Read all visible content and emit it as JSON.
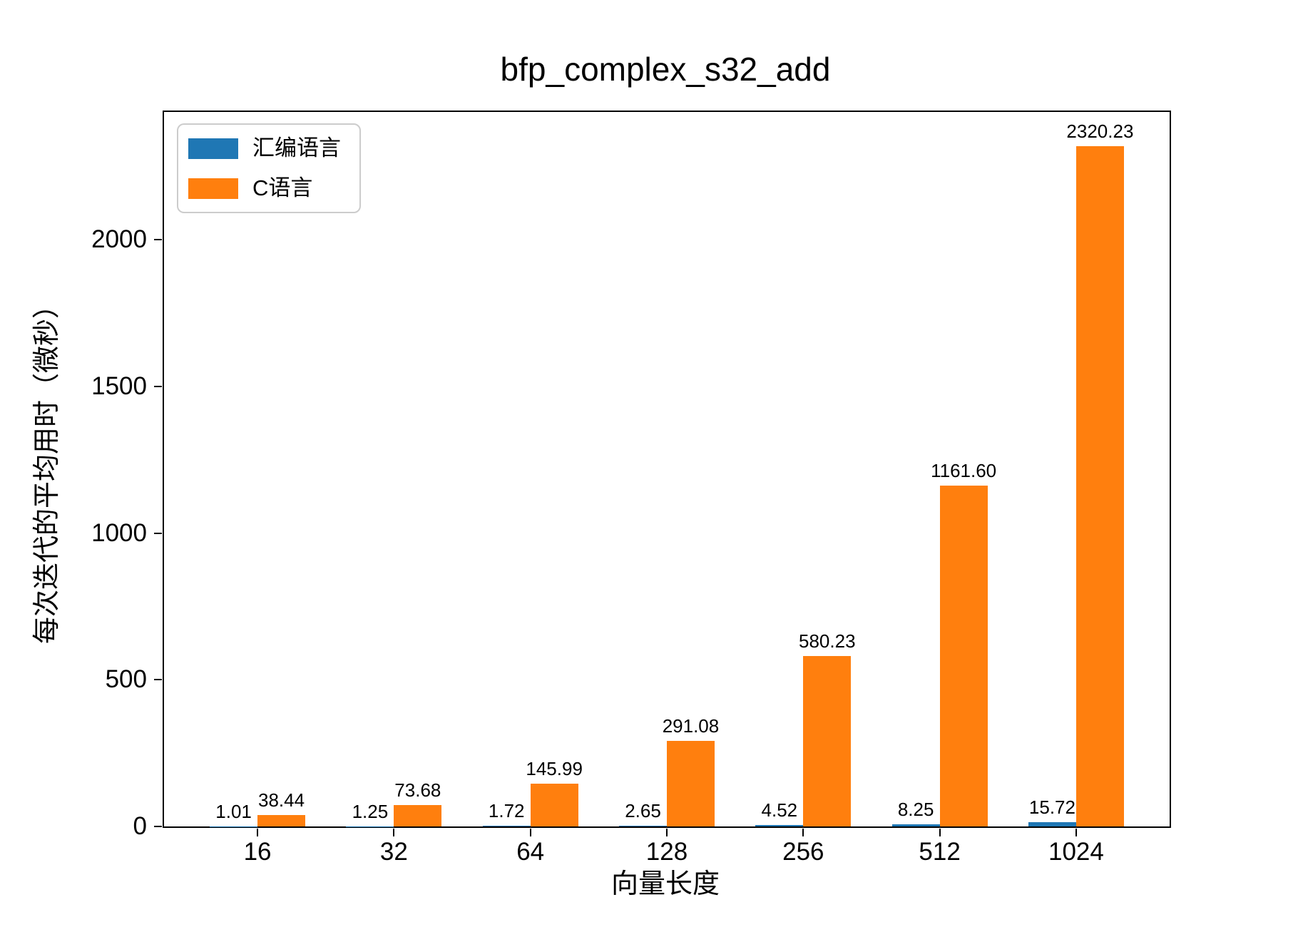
{
  "chart_data": {
    "type": "bar",
    "title": "bfp_complex_s32_add",
    "xlabel": "向量长度",
    "ylabel": "每次迭代的平均用时（微秒）",
    "categories": [
      "16",
      "32",
      "64",
      "128",
      "256",
      "512",
      "1024"
    ],
    "series": [
      {
        "name": "汇编语言",
        "color": "#1f77b4",
        "values": [
          1.01,
          1.25,
          1.72,
          2.65,
          4.52,
          8.25,
          15.72
        ],
        "labels": [
          "1.01",
          "1.25",
          "1.72",
          "2.65",
          "4.52",
          "8.25",
          "15.72"
        ]
      },
      {
        "name": "C语言",
        "color": "#ff7f0e",
        "values": [
          38.44,
          73.68,
          145.99,
          291.08,
          580.23,
          1161.6,
          2320.23
        ],
        "labels": [
          "38.44",
          "73.68",
          "145.99",
          "291.08",
          "580.23",
          "1161.60",
          "2320.23"
        ]
      }
    ],
    "ytick_labels": [
      "0",
      "500",
      "1000",
      "1500",
      "2000"
    ],
    "yticks": [
      0,
      500,
      1000,
      1500,
      2000
    ],
    "ylim": [
      0,
      2436
    ],
    "xlim": [
      -0.685,
      6.685
    ],
    "bar_width": 0.35,
    "grid": false,
    "legend_position": "upper-left"
  }
}
